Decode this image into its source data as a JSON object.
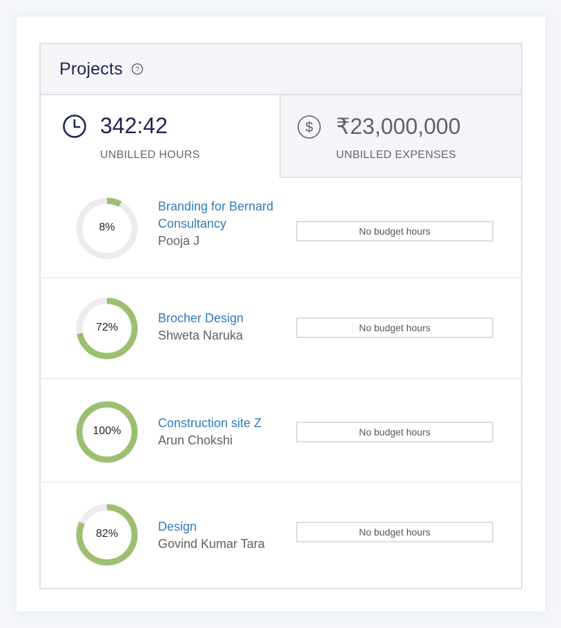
{
  "panel": {
    "title": "Projects",
    "help_icon": "help-circle-icon"
  },
  "stats": {
    "hours": {
      "icon": "clock-icon",
      "value": "342:42",
      "label": "UNBILLED HOURS"
    },
    "expenses": {
      "icon": "dollar-circle-icon",
      "value": "₹23,000,000",
      "label": "UNBILLED EXPENSES"
    }
  },
  "colors": {
    "progress": "#9cbf72",
    "track": "#ececec",
    "link": "#2e7bbf",
    "title": "#1f2352"
  },
  "projects": [
    {
      "percent": 8,
      "percent_label": "8%",
      "name_lines": [
        "Branding for Bernard",
        "Consultancy"
      ],
      "owner": "Pooja J",
      "budget": "No budget hours"
    },
    {
      "percent": 72,
      "percent_label": "72%",
      "name_lines": [
        "Brocher Design"
      ],
      "owner": "Shweta Naruka",
      "budget": "No budget hours"
    },
    {
      "percent": 100,
      "percent_label": "100%",
      "name_lines": [
        "Construction site Z"
      ],
      "owner": "Arun Chokshi",
      "budget": "No budget hours"
    },
    {
      "percent": 82,
      "percent_label": "82%",
      "name_lines": [
        "Design"
      ],
      "owner": "Govind Kumar Tara",
      "budget": "No budget hours"
    }
  ]
}
